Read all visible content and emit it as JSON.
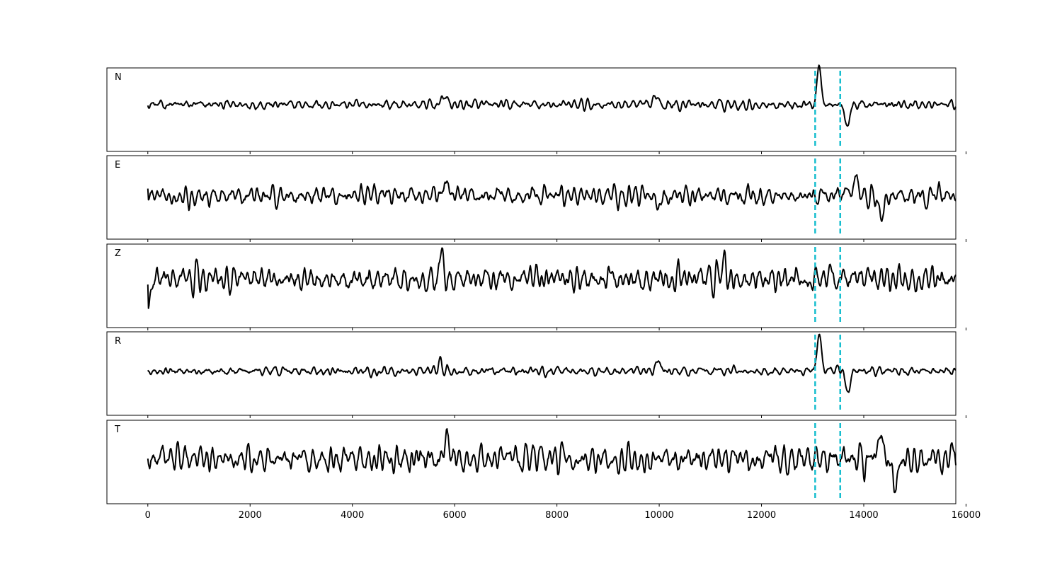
{
  "chart_data": {
    "type": "line",
    "xlim": [
      -800,
      15800
    ],
    "xticks": [
      0,
      2000,
      4000,
      6000,
      8000,
      10000,
      12000,
      14000,
      16000
    ],
    "x_range": [
      0,
      15800
    ],
    "samples_per_trace": 1300,
    "markers": [
      {
        "x": 13050,
        "color": "#17becf",
        "style": "dashed"
      },
      {
        "x": 13540,
        "color": "#17becf",
        "style": "dashed"
      }
    ],
    "panels": [
      {
        "label": "N",
        "baseline": 0.44,
        "ylim": [
          -1.0,
          1.0
        ],
        "noise_amp": 0.11,
        "start_value": -0.02,
        "events": [
          {
            "x": 5800,
            "amp": 0.25
          },
          {
            "x": 9950,
            "amp": 0.26
          },
          {
            "x": 13130,
            "amp": 0.95
          },
          {
            "x": 13680,
            "amp": -0.55
          }
        ]
      },
      {
        "label": "E",
        "baseline": 0.48,
        "ylim": [
          -1.0,
          1.0
        ],
        "noise_amp": 0.22,
        "start_value": 0.17,
        "events": [
          {
            "x": 5850,
            "amp": 0.33
          },
          {
            "x": 9950,
            "amp": -0.35
          },
          {
            "x": 13840,
            "amp": 0.48
          },
          {
            "x": 14340,
            "amp": -0.68
          }
        ]
      },
      {
        "label": "Z",
        "baseline": 0.42,
        "ylim": [
          -1.0,
          1.0
        ],
        "noise_amp": 0.3,
        "start_value": -0.13,
        "events": [
          {
            "x": 20,
            "amp": -0.64
          },
          {
            "x": 5750,
            "amp": 0.53
          },
          {
            "x": 11250,
            "amp": 0.4
          }
        ]
      },
      {
        "label": "R",
        "baseline": 0.47,
        "ylim": [
          -1.0,
          1.0
        ],
        "noise_amp": 0.12,
        "start_value": 0.02,
        "events": [
          {
            "x": 5700,
            "amp": 0.24
          },
          {
            "x": 10000,
            "amp": 0.26
          },
          {
            "x": 13130,
            "amp": 0.92
          },
          {
            "x": 13690,
            "amp": -0.55
          }
        ]
      },
      {
        "label": "T",
        "baseline": 0.47,
        "ylim": [
          -1.0,
          1.0
        ],
        "noise_amp": 0.33,
        "start_value": 0.02,
        "events": [
          {
            "x": 5850,
            "amp": 0.55
          },
          {
            "x": 14330,
            "amp": 0.78
          },
          {
            "x": 14600,
            "amp": -0.66
          }
        ]
      }
    ]
  }
}
